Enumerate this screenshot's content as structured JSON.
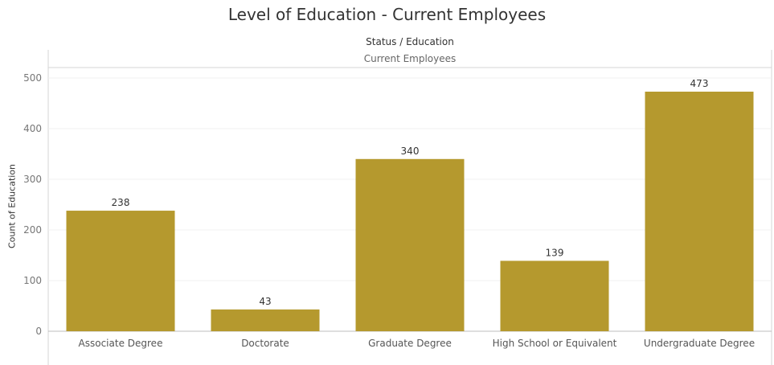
{
  "chart_data": {
    "type": "bar",
    "title": "Level of Education - Current Employees",
    "column_header": "Status / Education",
    "column_group": "Current Employees",
    "ylabel": "Count of Education",
    "xlabel": "",
    "categories": [
      "Associate Degree",
      "Doctorate",
      "Graduate Degree",
      "High School or Equivalent",
      "Undergraduate Degree"
    ],
    "values": [
      238,
      43,
      340,
      139,
      473
    ],
    "ylim": [
      0,
      520
    ],
    "yticks": [
      0,
      100,
      200,
      300,
      400,
      500
    ],
    "grid": true,
    "bar_color": "#b5992e"
  }
}
